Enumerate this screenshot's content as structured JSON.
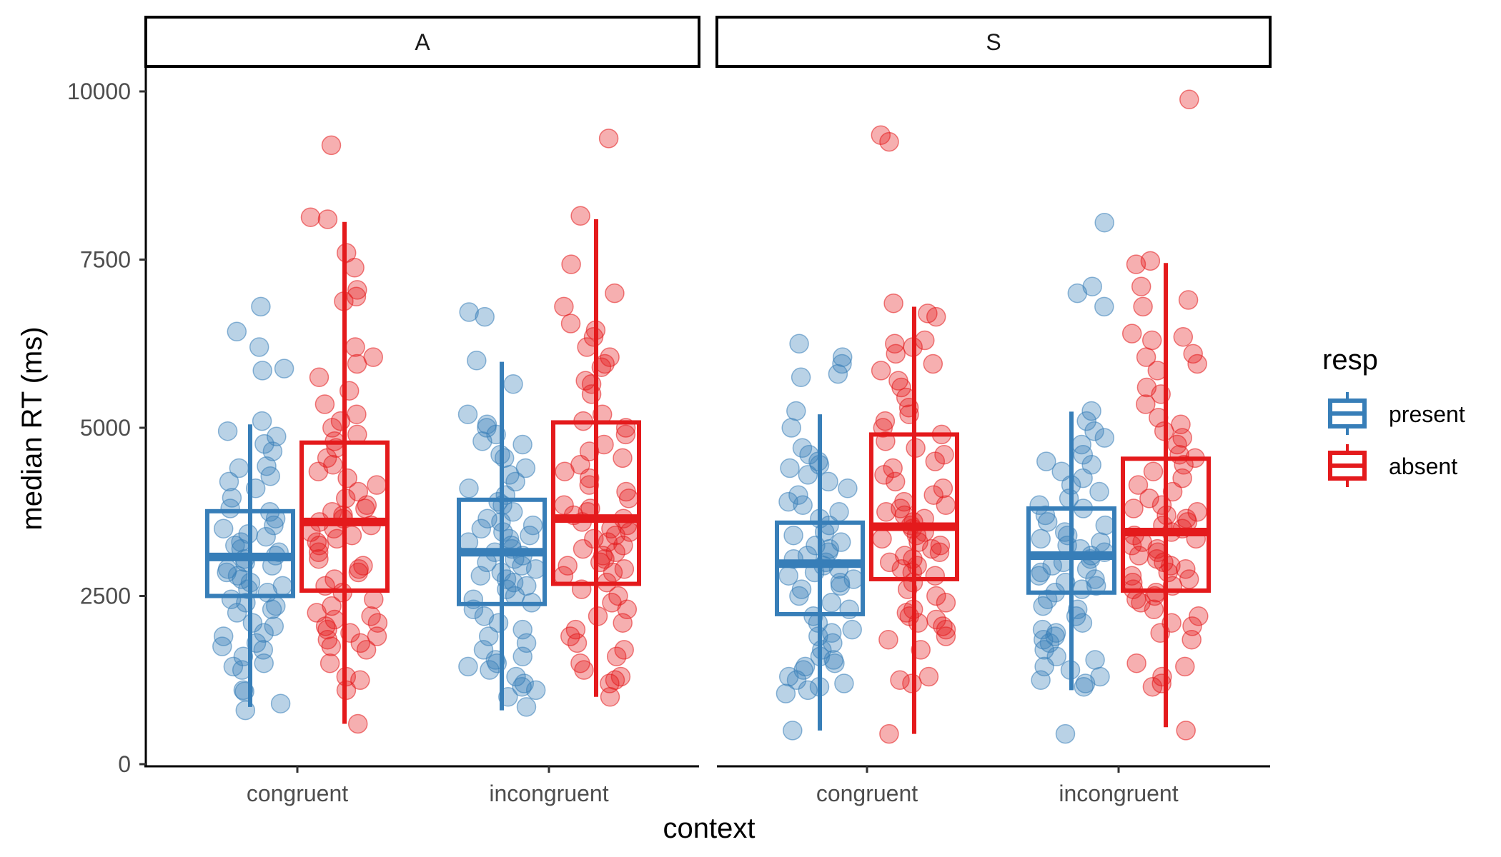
{
  "chart_data": {
    "type": "boxplot",
    "facets": [
      "A",
      "S"
    ],
    "categories": [
      "congruent",
      "incongruent"
    ],
    "xlabel": "context",
    "ylabel": "median RT (ms)",
    "ylim": [
      0,
      10000
    ],
    "yticks": [
      0,
      2500,
      5000,
      7500,
      10000
    ],
    "grid": false,
    "legend": {
      "title": "resp",
      "position": "right",
      "entries": [
        {
          "name": "present",
          "color": "#377EB8"
        },
        {
          "name": "absent",
          "color": "#E41A1C"
        }
      ]
    },
    "series": [
      {
        "name": "present",
        "color": "#377EB8",
        "boxes": [
          {
            "facet": "A",
            "category": "congruent",
            "min": 850,
            "q1": 2500,
            "median": 3080,
            "q3": 3760,
            "max": 5050,
            "points": [
              6800,
              6430,
              6200,
              5880,
              5850,
              5100,
              4950,
              4870,
              4760,
              4650,
              4430,
              4400,
              4280,
              4200,
              4100,
              3960,
              3800,
              3750,
              3650,
              3550,
              3500,
              3420,
              3380,
              3300,
              3250,
              3200,
              3150,
              3100,
              3050,
              3000,
              2950,
              2900,
              2850,
              2800,
              2750,
              2700,
              2650,
              2600,
              2550,
              2450,
              2400,
              2350,
              2300,
              2250,
              2100,
              2050,
              1950,
              1900,
              1800,
              1750,
              1700,
              1600,
              1500,
              1450,
              1400,
              1100,
              1080,
              900,
              800
            ]
          },
          {
            "facet": "A",
            "category": "incongruent",
            "min": 800,
            "q1": 2380,
            "median": 3150,
            "q3": 3930,
            "max": 5980,
            "points": [
              6720,
              6650,
              6000,
              5650,
              5200,
              5050,
              5000,
              4900,
              4800,
              4750,
              4600,
              4550,
              4400,
              4300,
              4200,
              4100,
              4000,
              3900,
              3850,
              3750,
              3650,
              3600,
              3550,
              3500,
              3450,
              3400,
              3350,
              3300,
              3250,
              3200,
              3150,
              3100,
              3050,
              3000,
              2950,
              2900,
              2850,
              2800,
              2750,
              2700,
              2650,
              2600,
              2500,
              2450,
              2400,
              2300,
              2200,
              2100,
              2000,
              1900,
              1800,
              1700,
              1600,
              1550,
              1500,
              1450,
              1400,
              1300,
              1200,
              1150,
              1100,
              1000,
              850
            ]
          }
        ]
      },
      {
        "name": "absent",
        "color": "#E41A1C",
        "boxes": [
          {
            "facet": "A",
            "category": "congruent",
            "min": 600,
            "q1": 2580,
            "median": 3600,
            "q3": 4780,
            "max": 8060,
            "points": [
              9200,
              8130,
              8100,
              7600,
              7380,
              7050,
              6950,
              6880,
              6200,
              6050,
              5950,
              5750,
              5550,
              5350,
              5200,
              5100,
              5000,
              4900,
              4800,
              4700,
              4550,
              4450,
              4350,
              4250,
              4150,
              4050,
              3950,
              3850,
              3800,
              3750,
              3700,
              3650,
              3600,
              3550,
              3500,
              3450,
              3400,
              3350,
              3300,
              3250,
              3150,
              3050,
              2950,
              2900,
              2850,
              2750,
              2650,
              2550,
              2450,
              2350,
              2250,
              2200,
              2150,
              2100,
              2050,
              2000,
              1950,
              1900,
              1850,
              1800,
              1750,
              1700,
              1500,
              1300,
              1250,
              1100,
              600
            ]
          },
          {
            "facet": "A",
            "category": "incongruent",
            "min": 1000,
            "q1": 2680,
            "median": 3650,
            "q3": 5080,
            "max": 8100,
            "points": [
              9300,
              8150,
              7430,
              7000,
              6800,
              6550,
              6450,
              6350,
              6200,
              6050,
              5950,
              5900,
              5700,
              5650,
              5500,
              5200,
              5100,
              5000,
              4900,
              4750,
              4650,
              4550,
              4450,
              4350,
              4250,
              4150,
              4050,
              3950,
              3850,
              3800,
              3750,
              3700,
              3650,
              3600,
              3550,
              3500,
              3450,
              3400,
              3350,
              3300,
              3250,
              3200,
              3150,
              3100,
              3050,
              3000,
              2950,
              2900,
              2850,
              2800,
              2700,
              2600,
              2500,
              2400,
              2300,
              2200,
              2100,
              2000,
              1900,
              1800,
              1700,
              1600,
              1500,
              1400,
              1300,
              1250,
              1200,
              1000
            ]
          }
        ]
      },
      {
        "name": "present",
        "color": "#377EB8",
        "boxes": [
          {
            "facet": "S",
            "category": "congruent",
            "min": 500,
            "q1": 2230,
            "median": 2980,
            "q3": 3590,
            "max": 5200,
            "points": [
              6250,
              6050,
              5950,
              5800,
              5750,
              5250,
              5000,
              4700,
              4600,
              4500,
              4450,
              4400,
              4300,
              4200,
              4100,
              4000,
              3900,
              3850,
              3750,
              3650,
              3550,
              3450,
              3400,
              3300,
              3250,
              3200,
              3150,
              3100,
              3050,
              3000,
              2950,
              2900,
              2850,
              2800,
              2750,
              2700,
              2650,
              2600,
              2500,
              2400,
              2300,
              2200,
              2100,
              2000,
              1950,
              1900,
              1800,
              1700,
              1600,
              1550,
              1500,
              1450,
              1400,
              1300,
              1250,
              1200,
              1150,
              1100,
              1050,
              500
            ]
          },
          {
            "facet": "S",
            "category": "incongruent",
            "min": 1100,
            "q1": 2550,
            "median": 3100,
            "q3": 3800,
            "max": 5240,
            "points": [
              8050,
              7100,
              7000,
              6800,
              5250,
              5100,
              4950,
              4850,
              4750,
              4600,
              4500,
              4450,
              4350,
              4250,
              4150,
              4050,
              3950,
              3850,
              3800,
              3700,
              3600,
              3550,
              3450,
              3400,
              3350,
              3300,
              3250,
              3200,
              3150,
              3100,
              3050,
              3000,
              2950,
              2900,
              2850,
              2800,
              2750,
              2700,
              2650,
              2600,
              2550,
              2450,
              2350,
              2300,
              2200,
              2100,
              2000,
              1950,
              1900,
              1850,
              1800,
              1700,
              1600,
              1550,
              1450,
              1400,
              1300,
              1250,
              1200,
              1150,
              450
            ]
          }
        ]
      },
      {
        "name": "absent",
        "color": "#E41A1C",
        "boxes": [
          {
            "facet": "S",
            "category": "congruent",
            "min": 450,
            "q1": 2750,
            "median": 3530,
            "q3": 4900,
            "max": 6800,
            "points": [
              9350,
              9250,
              6850,
              6700,
              6650,
              6300,
              6250,
              6200,
              6100,
              5950,
              5850,
              5700,
              5600,
              5450,
              5300,
              5200,
              5100,
              5000,
              4900,
              4800,
              4700,
              4600,
              4500,
              4400,
              4300,
              4200,
              4100,
              4000,
              3900,
              3850,
              3800,
              3750,
              3700,
              3650,
              3600,
              3550,
              3500,
              3450,
              3400,
              3350,
              3300,
              3250,
              3200,
              3150,
              3100,
              3050,
              3000,
              2950,
              2900,
              2850,
              2800,
              2700,
              2600,
              2500,
              2400,
              2300,
              2250,
              2200,
              2150,
              2100,
              2050,
              2000,
              1900,
              1850,
              1700,
              1300,
              1250,
              1200,
              450
            ]
          },
          {
            "facet": "S",
            "category": "incongruent",
            "min": 550,
            "q1": 2580,
            "median": 3450,
            "q3": 4540,
            "max": 7450,
            "points": [
              9880,
              7480,
              7430,
              7100,
              6900,
              6800,
              6400,
              6350,
              6300,
              6100,
              6050,
              5950,
              5850,
              5600,
              5500,
              5350,
              5150,
              5050,
              4950,
              4850,
              4750,
              4600,
              4550,
              4450,
              4350,
              4250,
              4150,
              4050,
              3950,
              3850,
              3800,
              3750,
              3700,
              3650,
              3600,
              3550,
              3500,
              3450,
              3400,
              3350,
              3300,
              3250,
              3200,
              3150,
              3100,
              3050,
              3000,
              2950,
              2900,
              2850,
              2800,
              2750,
              2700,
              2650,
              2600,
              2550,
              2500,
              2450,
              2400,
              2300,
              2200,
              2100,
              2050,
              1950,
              1850,
              1500,
              1450,
              1300,
              1200,
              1150,
              500
            ]
          }
        ]
      }
    ]
  }
}
